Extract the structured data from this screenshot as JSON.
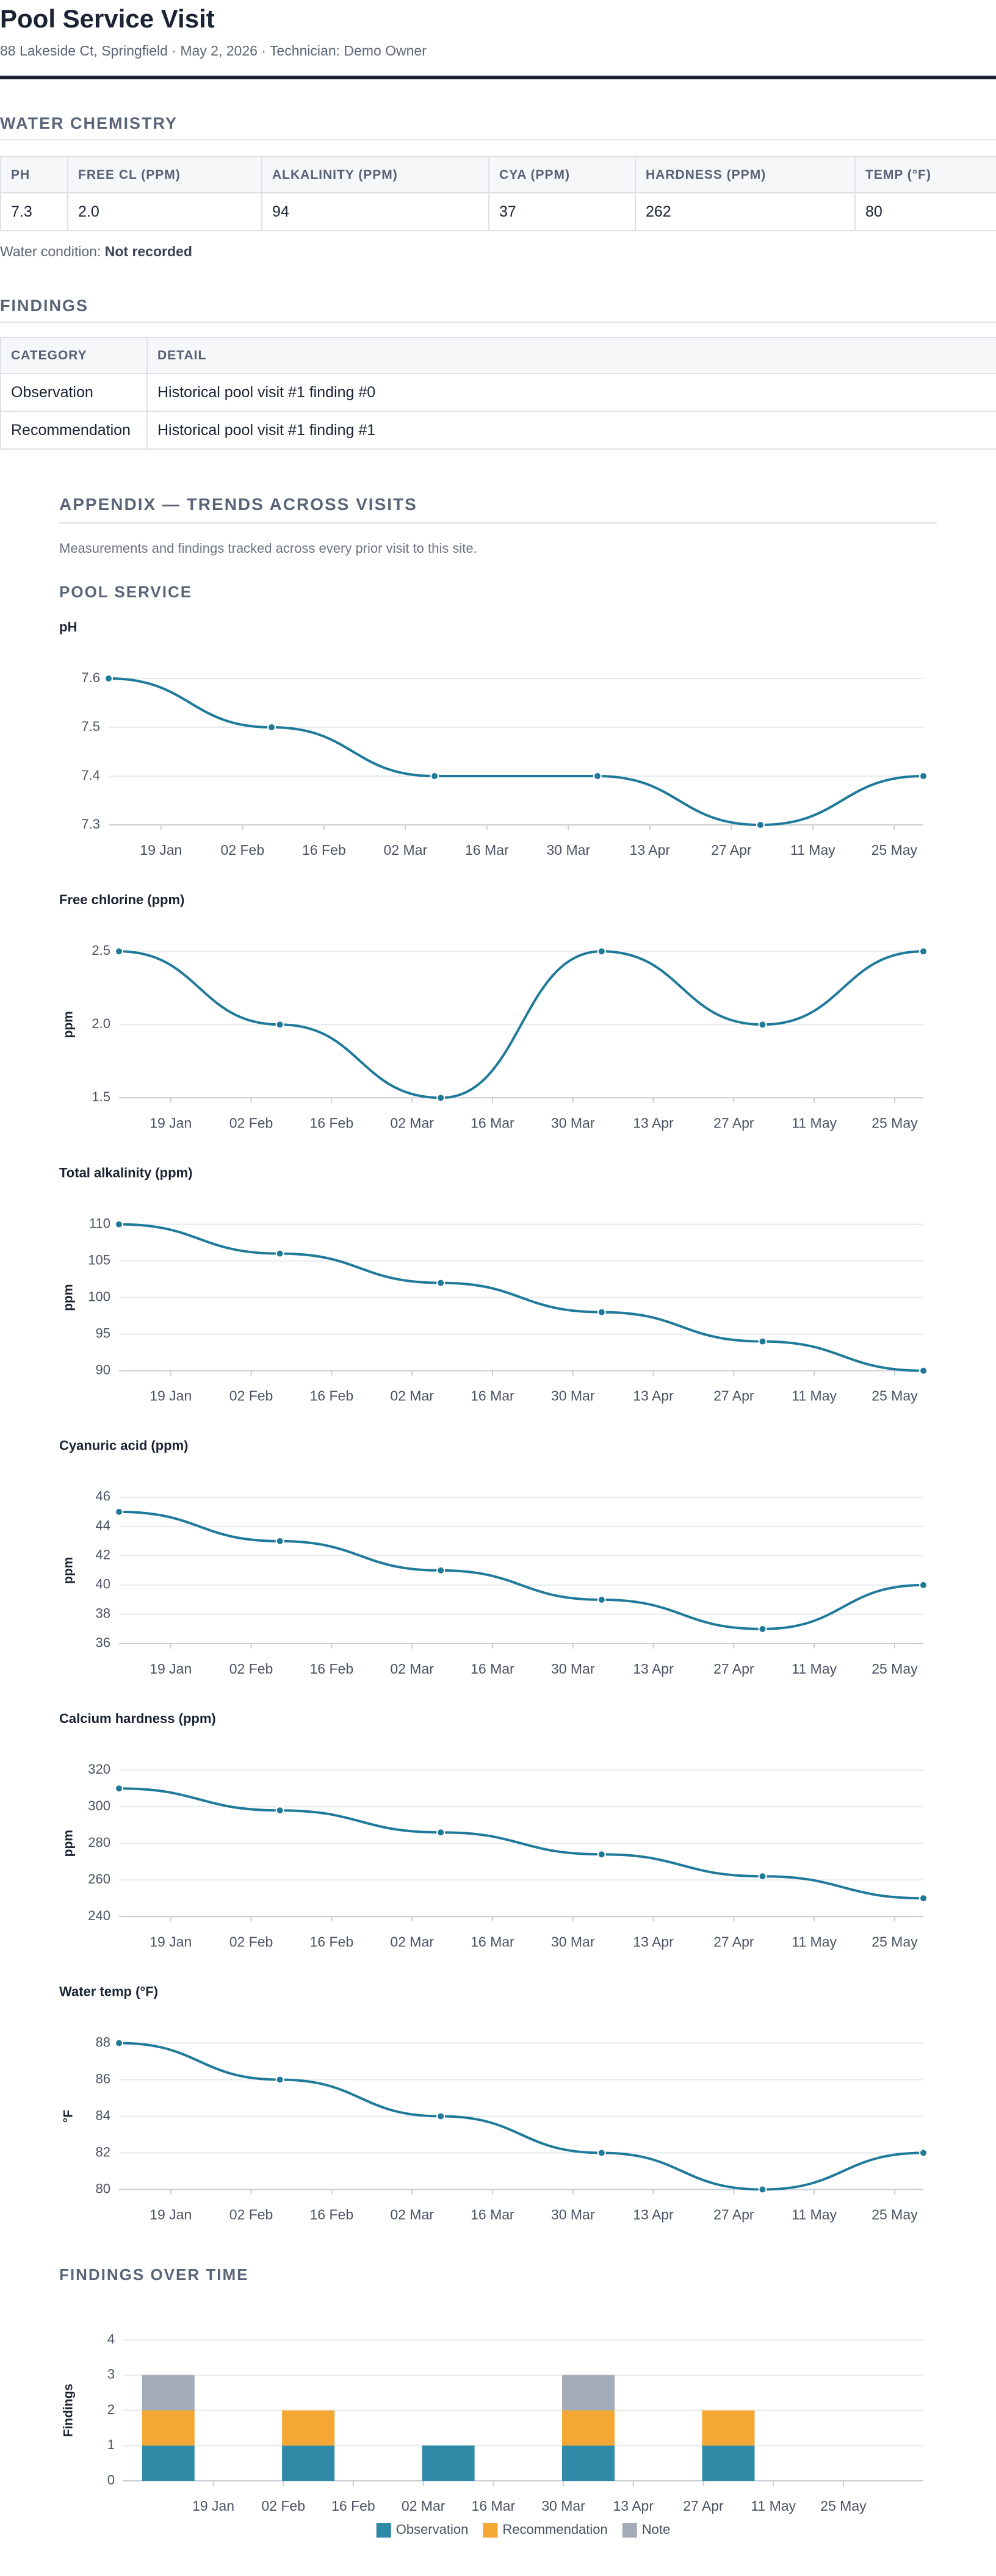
{
  "header": {
    "title": "Pool Service Visit",
    "subtitle": "88 Lakeside Ct, Springfield · May 2, 2026 · Technician: Demo Owner"
  },
  "water_chemistry": {
    "heading": "WATER CHEMISTRY",
    "columns": [
      "PH",
      "FREE CL (PPM)",
      "ALKALINITY (PPM)",
      "CYA (PPM)",
      "HARDNESS (PPM)",
      "TEMP (°F)"
    ],
    "rows": [
      [
        "7.3",
        "2.0",
        "94",
        "37",
        "262",
        "80"
      ]
    ],
    "condition_label": "Water condition:",
    "condition_value": "Not recorded"
  },
  "findings": {
    "heading": "FINDINGS",
    "columns": [
      "CATEGORY",
      "DETAIL"
    ],
    "rows": [
      [
        "Observation",
        "Historical pool visit #1 finding #0"
      ],
      [
        "Recommendation",
        "Historical pool visit #1 finding #1"
      ]
    ]
  },
  "appendix": {
    "title": "APPENDIX — TRENDS ACROSS VISITS",
    "note": "Measurements and findings tracked across every prior visit to this site.",
    "section": "POOL SERVICE"
  },
  "chart_data": [
    {
      "type": "line",
      "title": "pH",
      "x": [
        "10 Jan",
        "07 Feb",
        "07 Mar",
        "04 Apr",
        "02 May",
        "30 May"
      ],
      "values": [
        7.6,
        7.5,
        7.4,
        7.4,
        7.3,
        7.4
      ],
      "color": "#1f7a99",
      "xlim": [
        "10 Jan",
        "30 May"
      ],
      "xticks": [
        "19 Jan",
        "02 Feb",
        "16 Feb",
        "02 Mar",
        "16 Mar",
        "30 Mar",
        "13 Apr",
        "27 Apr",
        "11 May",
        "25 May"
      ],
      "ylim": [
        7.3,
        7.6
      ],
      "yticks": [
        7.3,
        7.4,
        7.5,
        7.6
      ],
      "grid": true
    },
    {
      "type": "line",
      "title": "Free chlorine (ppm)",
      "ylabel": "ppm",
      "x": [
        "10 Jan",
        "07 Feb",
        "07 Mar",
        "04 Apr",
        "02 May",
        "30 May"
      ],
      "values": [
        2.5,
        2.0,
        1.5,
        2.5,
        2.0,
        2.5
      ],
      "color": "#1f7a99",
      "xlim": [
        "10 Jan",
        "30 May"
      ],
      "xticks": [
        "19 Jan",
        "02 Feb",
        "16 Feb",
        "02 Mar",
        "16 Mar",
        "30 Mar",
        "13 Apr",
        "27 Apr",
        "11 May",
        "25 May"
      ],
      "ylim": [
        1.5,
        2.5
      ],
      "yticks": [
        1.5,
        {
          "value": 2,
          "label": "2.0"
        },
        2.5
      ],
      "grid": true
    },
    {
      "type": "line",
      "title": "Total alkalinity (ppm)",
      "ylabel": "ppm",
      "x": [
        "10 Jan",
        "07 Feb",
        "07 Mar",
        "04 Apr",
        "02 May",
        "30 May"
      ],
      "values": [
        110,
        106,
        102,
        98,
        94,
        90
      ],
      "color": "#1f7a99",
      "xlim": [
        "10 Jan",
        "30 May"
      ],
      "xticks": [
        "19 Jan",
        "02 Feb",
        "16 Feb",
        "02 Mar",
        "16 Mar",
        "30 Mar",
        "13 Apr",
        "27 Apr",
        "11 May",
        "25 May"
      ],
      "ylim": [
        90,
        110
      ],
      "yticks": [
        90,
        95,
        100,
        105,
        110
      ],
      "grid": true
    },
    {
      "type": "line",
      "title": "Cyanuric acid (ppm)",
      "ylabel": "ppm",
      "x": [
        "10 Jan",
        "07 Feb",
        "07 Mar",
        "04 Apr",
        "02 May",
        "30 May"
      ],
      "values": [
        45,
        43,
        41,
        39,
        37,
        40
      ],
      "color": "#1f7a99",
      "xlim": [
        "10 Jan",
        "30 May"
      ],
      "xticks": [
        "19 Jan",
        "02 Feb",
        "16 Feb",
        "02 Mar",
        "16 Mar",
        "30 Mar",
        "13 Apr",
        "27 Apr",
        "11 May",
        "25 May"
      ],
      "ylim": [
        36,
        46
      ],
      "yticks": [
        36,
        38,
        40,
        42,
        44,
        46
      ],
      "grid": true
    },
    {
      "type": "line",
      "title": "Calcium hardness (ppm)",
      "ylabel": "ppm",
      "x": [
        "10 Jan",
        "07 Feb",
        "07 Mar",
        "04 Apr",
        "02 May",
        "30 May"
      ],
      "values": [
        310,
        298,
        286,
        274,
        262,
        250
      ],
      "color": "#1f7a99",
      "xlim": [
        "10 Jan",
        "30 May"
      ],
      "xticks": [
        "19 Jan",
        "02 Feb",
        "16 Feb",
        "02 Mar",
        "16 Mar",
        "30 Mar",
        "13 Apr",
        "27 Apr",
        "11 May",
        "25 May"
      ],
      "ylim": [
        240,
        320
      ],
      "yticks": [
        240,
        260,
        280,
        300,
        320
      ],
      "grid": true
    },
    {
      "type": "line",
      "title": "Water temp (°F)",
      "ylabel": "°F",
      "x": [
        "10 Jan",
        "07 Feb",
        "07 Mar",
        "04 Apr",
        "02 May",
        "30 May"
      ],
      "values": [
        88,
        86,
        84,
        82,
        80,
        82
      ],
      "color": "#1f7a99",
      "xlim": [
        "10 Jan",
        "30 May"
      ],
      "xticks": [
        "19 Jan",
        "02 Feb",
        "16 Feb",
        "02 Mar",
        "16 Mar",
        "30 Mar",
        "13 Apr",
        "27 Apr",
        "11 May",
        "25 May"
      ],
      "ylim": [
        80,
        88
      ],
      "yticks": [
        80,
        82,
        84,
        86,
        88
      ],
      "grid": true
    },
    {
      "type": "bar",
      "title": "FINDINGS OVER TIME",
      "ylabel": "Findings",
      "x": [
        "10 Jan",
        "07 Feb",
        "07 Mar",
        "04 Apr",
        "02 May",
        "30 May"
      ],
      "series": [
        {
          "name": "Observation",
          "color": "#2e8aa6",
          "values": [
            1,
            1,
            1,
            1,
            1,
            0
          ]
        },
        {
          "name": "Recommendation",
          "color": "#f4a833",
          "values": [
            1,
            1,
            0,
            1,
            1,
            0
          ]
        },
        {
          "name": "Note",
          "color": "#a2abb9",
          "values": [
            1,
            0,
            0,
            1,
            0,
            0
          ]
        }
      ],
      "xlim": [
        "01 Jan",
        "10 Jun"
      ],
      "xticks": [
        "19 Jan",
        "02 Feb",
        "16 Feb",
        "02 Mar",
        "16 Mar",
        "30 Mar",
        "13 Apr",
        "27 Apr",
        "11 May",
        "25 May"
      ],
      "ylim": [
        0,
        4
      ],
      "yticks": [
        0,
        1,
        2,
        3,
        4
      ],
      "grid": true,
      "legend": "bottom"
    }
  ]
}
